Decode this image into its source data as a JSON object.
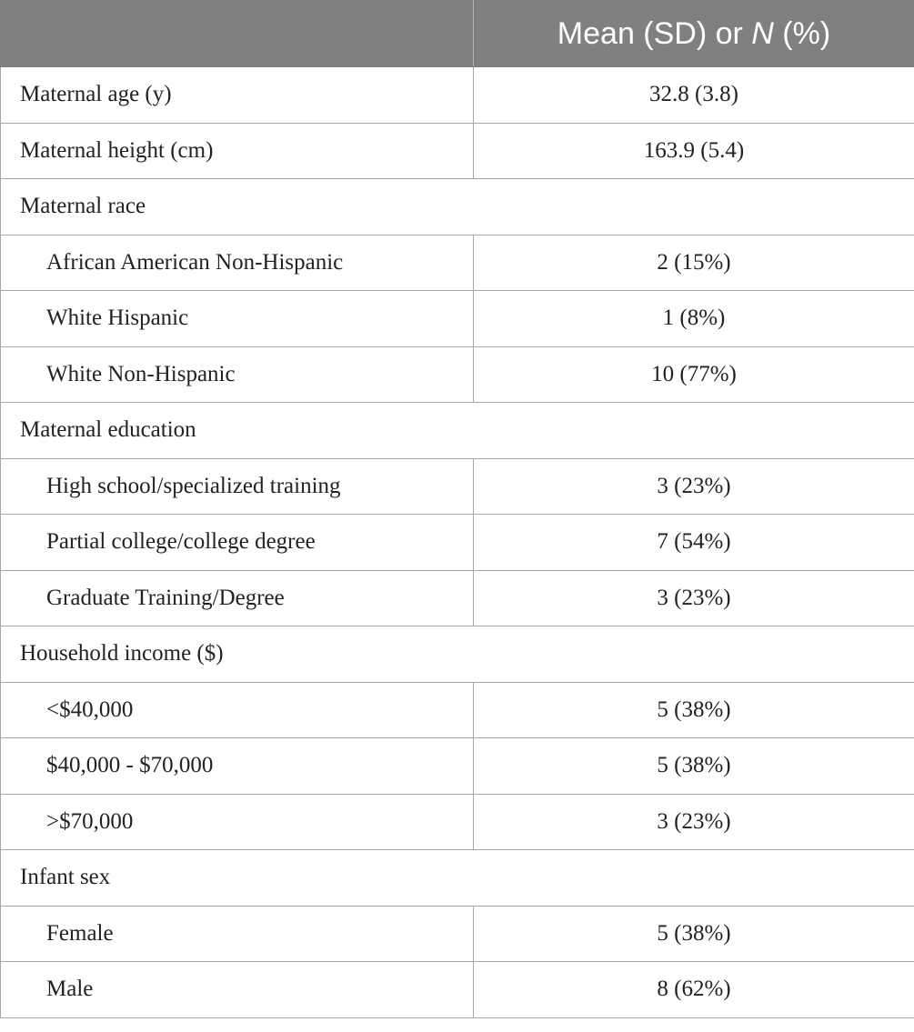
{
  "header": {
    "col1": "",
    "col2_part1": "Mean (SD) or ",
    "col2_italic": "N",
    "col2_part2": " (%)"
  },
  "rows": [
    {
      "label": "Maternal age (y)",
      "value": "32.8 (3.8)"
    },
    {
      "label": "Maternal height (cm)",
      "value": "163.9 (5.4)"
    },
    {
      "label": "Maternal race",
      "value": ""
    },
    {
      "label": "African American Non-Hispanic",
      "value": "2 (15%)"
    },
    {
      "label": "White Hispanic",
      "value": "1 (8%)"
    },
    {
      "label": "White Non-Hispanic",
      "value": "10 (77%)"
    },
    {
      "label": "Maternal education",
      "value": ""
    },
    {
      "label": "High school/specialized training",
      "value": "3 (23%)"
    },
    {
      "label": "Partial college/college degree",
      "value": "7 (54%)"
    },
    {
      "label": "Graduate Training/Degree",
      "value": "3 (23%)"
    },
    {
      "label": "Household income ($)",
      "value": ""
    },
    {
      "label": "<$40,000",
      "value": "5 (38%)"
    },
    {
      "label": "$40,000 - $70,000",
      "value": "5 (38%)"
    },
    {
      "label": ">$70,000",
      "value": "3 (23%)"
    },
    {
      "label": "Infant sex",
      "value": ""
    },
    {
      "label": "Female",
      "value": "5 (38%)"
    },
    {
      "label": "Male",
      "value": "8 (62%)"
    }
  ]
}
